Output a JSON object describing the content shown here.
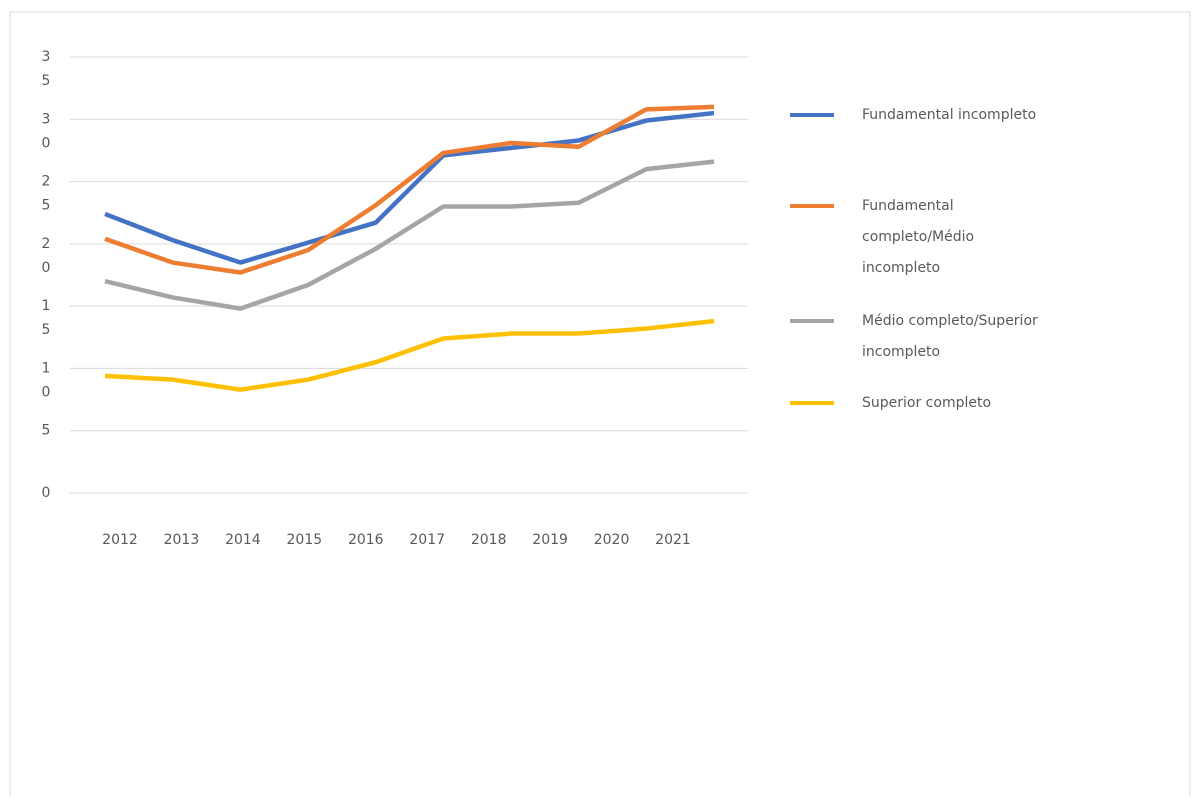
{
  "chart_data": {
    "type": "line",
    "categories": [
      "2012",
      "2013",
      "2014",
      "2015",
      "2016",
      "2017",
      "2018",
      "2019",
      "2020",
      "2021"
    ],
    "series": [
      {
        "name": "Fundamental incompleto",
        "color": "#4472c4",
        "values": [
          22.4,
          20.3,
          18.5,
          20.1,
          21.7,
          27.1,
          27.7,
          28.3,
          29.9,
          30.5
        ]
      },
      {
        "name": "Fundamental completo/Médio incompleto",
        "color": "#ed7d31",
        "values": [
          20.4,
          18.5,
          17.7,
          19.5,
          23.1,
          27.3,
          28.1,
          27.8,
          30.8,
          31.0
        ]
      },
      {
        "name": "Médio completo/Superior incompleto",
        "color": "#a5a5a5",
        "values": [
          17.0,
          15.7,
          14.8,
          16.7,
          19.6,
          23.0,
          23.0,
          23.3,
          26.0,
          26.6
        ]
      },
      {
        "name": "Superior completo",
        "color": "#ffc000",
        "values": [
          9.4,
          9.1,
          8.3,
          9.1,
          10.5,
          12.4,
          12.8,
          12.8,
          13.2,
          13.8
        ]
      }
    ],
    "ylim": [
      0,
      35
    ],
    "yticks": [
      0,
      5,
      10,
      15,
      20,
      25,
      30,
      35
    ],
    "grid": true,
    "legend": "right"
  }
}
